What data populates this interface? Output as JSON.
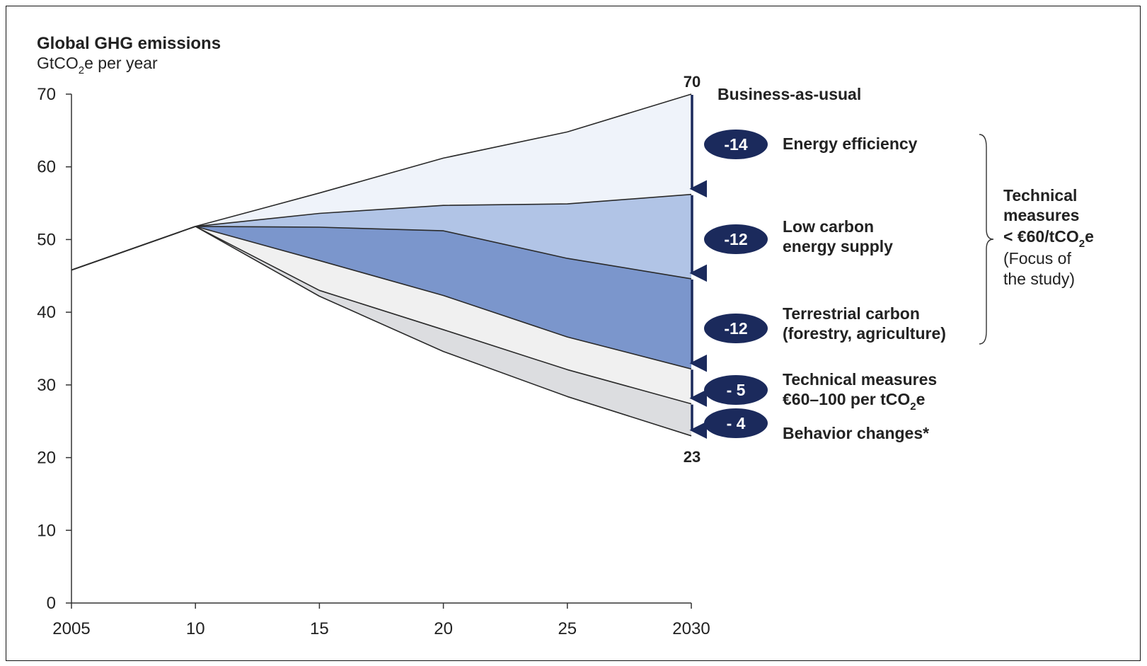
{
  "chart_data": {
    "type": "area",
    "title": "Global GHG emissions",
    "unit": {
      "base": "GtCO",
      "sub": "2",
      "rest": "e per year"
    },
    "x_ticks": [
      "2005",
      "10",
      "15",
      "20",
      "25",
      "2030"
    ],
    "x": [
      2005,
      2010,
      2015,
      2020,
      2025,
      2030
    ],
    "ylim": [
      0,
      70
    ],
    "y_ticks": [
      0,
      10,
      20,
      30,
      40,
      50,
      60,
      70
    ],
    "history": {
      "x": [
        2005,
        2010
      ],
      "values": [
        45.8,
        51.8
      ]
    },
    "lines": {
      "business_as_usual": [
        51.8,
        56.4,
        61.2,
        64.8,
        70
      ],
      "after_energy_efficiency": [
        51.8,
        53.6,
        54.7,
        54.9,
        56.2
      ],
      "after_low_carbon_supply": [
        51.8,
        51.7,
        51.2,
        47.4,
        44.6
      ],
      "after_terrestrial_carbon": [
        51.8,
        47.1,
        42.3,
        36.6,
        32.2
      ],
      "after_technical_60_100": [
        51.8,
        43.0,
        37.6,
        32.1,
        27.4
      ],
      "after_behavior_changes": [
        51.8,
        42.2,
        34.6,
        28.4,
        23.0
      ]
    },
    "start_label": "70",
    "end_label": "23",
    "bau_label": "Business-as-usual",
    "levers": [
      {
        "value": "-14",
        "lines": [
          "Energy efficiency"
        ],
        "top": 70,
        "bottom": 56.2,
        "color": "#eff3fa"
      },
      {
        "value": "-12",
        "lines": [
          "Low carbon",
          "energy supply"
        ],
        "top": 56.2,
        "bottom": 44.6,
        "color": "#b1c4e6"
      },
      {
        "value": "-12",
        "lines": [
          "Terrestrial carbon",
          "(forestry, agriculture)"
        ],
        "top": 44.6,
        "bottom": 32.2,
        "color": "#7b96cc"
      },
      {
        "value": "- 5",
        "lines": [
          "Technical measures"
        ],
        "extra": {
          "base": "€60–100 per tCO",
          "sub": "2",
          "rest": "e"
        },
        "top": 32.2,
        "bottom": 27.4,
        "color": "#f0f0f0"
      },
      {
        "value": "- 4",
        "lines": [
          "Behavior changes*"
        ],
        "top": 27.4,
        "bottom": 23.0,
        "color": "#dcdde0"
      }
    ],
    "bracket_label": {
      "bold_lines": [
        "Technical",
        "measures"
      ],
      "threshold": {
        "base": "< €60/tCO",
        "sub": "2",
        "rest": "e"
      },
      "plain_lines": [
        "(Focus of",
        "the study)"
      ]
    },
    "colors": {
      "arrow": "#1b2a5c",
      "pill": "#1b2a5c",
      "line": "#2a2a2a"
    }
  }
}
